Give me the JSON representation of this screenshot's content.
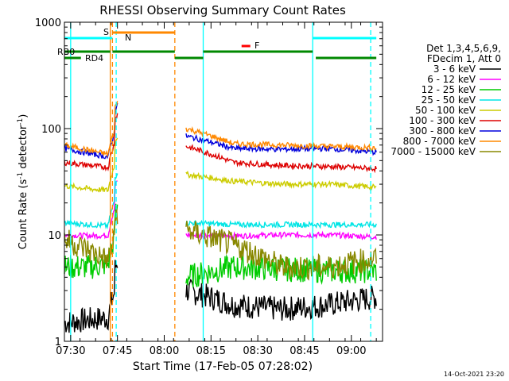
{
  "chart_data": {
    "type": "line",
    "title": "RHESSI Observing Summary Count Rates",
    "xlabel": "Start Time (17-Feb-05 07:28:02)",
    "ylabel_main": "Count Rate (s",
    "ylabel_sup1": "-1",
    "ylabel_mid": " detector",
    "ylabel_sup2": "-1",
    "ylabel_end": ")",
    "yscale": "log",
    "ylim": [
      1,
      1000
    ],
    "xlim_minutes": [
      0,
      102
    ],
    "x_ticks": [
      {
        "t": 2,
        "label": "07:30"
      },
      {
        "t": 17,
        "label": "07:45"
      },
      {
        "t": 32,
        "label": "08:00"
      },
      {
        "t": 47,
        "label": "08:15"
      },
      {
        "t": 62,
        "label": "08:30"
      },
      {
        "t": 77,
        "label": "08:45"
      },
      {
        "t": 92,
        "label": "09:00"
      }
    ],
    "y_ticks": [
      {
        "v": 1,
        "label": "1"
      },
      {
        "v": 10,
        "label": "10"
      },
      {
        "v": 100,
        "label": "100"
      },
      {
        "v": 1000,
        "label": "1000"
      }
    ],
    "legend_header": [
      "Det 1,3,4,5,6,9,",
      "FDecim 1, Att 0"
    ],
    "series": [
      {
        "name": "3 - 6 keV",
        "color": "#000000",
        "seg1": [
          1.5,
          1.6,
          1.7
        ],
        "seg2": [
          3.0,
          2.2,
          2.0,
          2.2,
          2.6
        ],
        "mode": "noisy"
      },
      {
        "name": "6 - 12 keV",
        "color": "#ff00ff",
        "seg1": [
          10,
          9.8,
          10
        ],
        "seg2": [
          10,
          9.8,
          10,
          10,
          9.6
        ],
        "mode": "flat"
      },
      {
        "name": "12 - 25 keV",
        "color": "#00cc00",
        "seg1": [
          5.0,
          5.0,
          5.5
        ],
        "seg2": [
          4.0,
          5.0,
          4.8,
          4.6,
          4.6
        ],
        "mode": "noisy"
      },
      {
        "name": "25 - 50 keV",
        "color": "#00e5e5",
        "seg1": [
          13,
          12.5,
          12
        ],
        "seg2": [
          13,
          12.5,
          12.5,
          12.5,
          12.5
        ],
        "mode": "flat"
      },
      {
        "name": "50 - 100 keV",
        "color": "#cccc00",
        "seg1": [
          29,
          27,
          26
        ],
        "seg2": [
          37,
          32,
          30,
          30,
          28
        ],
        "mode": "flat"
      },
      {
        "name": "100 - 300 keV",
        "color": "#dd0000",
        "seg1": [
          48,
          45,
          42
        ],
        "seg2": [
          68,
          48,
          45,
          44,
          42
        ],
        "mode": "flat"
      },
      {
        "name": "300 - 800 keV",
        "color": "#0000dd",
        "seg1": [
          65,
          58,
          52
        ],
        "seg2": [
          85,
          65,
          64,
          65,
          60
        ],
        "mode": "flat"
      },
      {
        "name": "800 - 7000 keV",
        "color": "#ff8800",
        "seg1": [
          70,
          62,
          55
        ],
        "seg2": [
          100,
          72,
          70,
          68,
          66
        ],
        "mode": "flat"
      },
      {
        "name": "7000 - 15000 keV",
        "color": "#888800",
        "seg1": [
          9.0,
          7.0,
          5.0
        ],
        "seg2": [
          11,
          8.0,
          5.0,
          5.0,
          6.0
        ],
        "mode": "noisy"
      }
    ],
    "flags": [
      {
        "label": "S",
        "color": "#ff8800",
        "t0": 17,
        "t1": 35
      },
      {
        "label": "N",
        "color": "#00ffff",
        "t0": 0,
        "t1": 15
      },
      {
        "label": "F",
        "color": "#ff0000",
        "t0": 56,
        "t1": 59
      },
      {
        "label": "RB0",
        "color": "#008800",
        "t0": 0,
        "t1": 100
      },
      {
        "label": "RD4",
        "color": "#008800",
        "t0": 0,
        "t1": 100
      }
    ],
    "timestamp": "14-Oct-2021 23:20"
  }
}
